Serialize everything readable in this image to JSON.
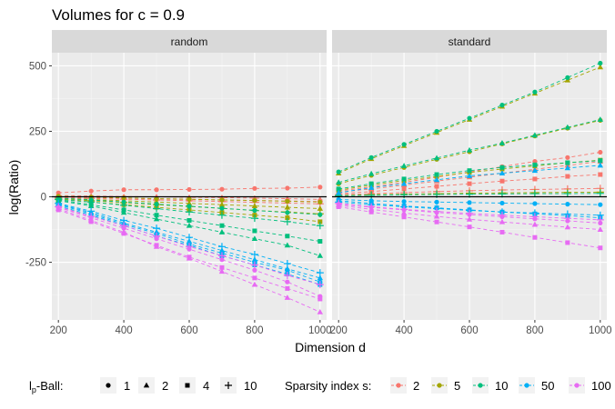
{
  "chart_data": {
    "type": "line",
    "title": "Volumes for c = 0.9",
    "xlabel": "Dimension d",
    "ylabel": "log(Ratio)",
    "x": [
      200,
      300,
      400,
      500,
      600,
      700,
      800,
      900,
      1000
    ],
    "xticks": [
      "200",
      "400",
      "600",
      "800",
      "1000"
    ],
    "yticks": [
      "-250",
      "0",
      "250",
      "500"
    ],
    "xlim": [
      180,
      1020
    ],
    "ylim": [
      -470,
      550
    ],
    "hline": 0,
    "facets": [
      "random",
      "standard"
    ],
    "legend": {
      "shape_title": "lp-Ball:",
      "shape_title_main": "l",
      "shape_title_sub": "p",
      "shape_title_rest": "-Ball:",
      "shapes": [
        {
          "label": "1",
          "shape": "circle"
        },
        {
          "label": "2",
          "shape": "triangle"
        },
        {
          "label": "4",
          "shape": "square"
        },
        {
          "label": "10",
          "shape": "plus"
        }
      ],
      "color_title": "Sparsity index s:",
      "colors": [
        {
          "label": "2",
          "color": "#F8766D"
        },
        {
          "label": "5",
          "color": "#A3A500"
        },
        {
          "label": "10",
          "color": "#00BF7D"
        },
        {
          "label": "50",
          "color": "#00B0F6"
        },
        {
          "label": "100",
          "color": "#E76BF3"
        }
      ]
    },
    "series": [
      {
        "facet": "random",
        "s": "2",
        "p": "1",
        "values": [
          15,
          22,
          27,
          27,
          28,
          29,
          32,
          33,
          37
        ]
      },
      {
        "facet": "random",
        "s": "2",
        "p": "2",
        "values": [
          5,
          3,
          1,
          0,
          -2,
          -3,
          -5,
          -7,
          -10
        ]
      },
      {
        "facet": "random",
        "s": "2",
        "p": "4",
        "values": [
          0,
          -3,
          -5,
          -8,
          -10,
          -12,
          -14,
          -16,
          -18
        ]
      },
      {
        "facet": "random",
        "s": "2",
        "p": "10",
        "values": [
          -3,
          -6,
          -9,
          -12,
          -15,
          -18,
          -21,
          -24,
          -27
        ]
      },
      {
        "facet": "random",
        "s": "5",
        "p": "1",
        "values": [
          2,
          -1,
          -4,
          -7,
          -9,
          -12,
          -14,
          -17,
          -20
        ]
      },
      {
        "facet": "random",
        "s": "5",
        "p": "2",
        "values": [
          -5,
          -10,
          -15,
          -20,
          -25,
          -30,
          -35,
          -40,
          -45
        ]
      },
      {
        "facet": "random",
        "s": "5",
        "p": "4",
        "values": [
          -10,
          -20,
          -30,
          -40,
          -50,
          -60,
          -70,
          -80,
          -95
        ]
      },
      {
        "facet": "random",
        "s": "5",
        "p": "10",
        "values": [
          -8,
          -15,
          -22,
          -30,
          -37,
          -44,
          -52,
          -58,
          -65
        ]
      },
      {
        "facet": "random",
        "s": "10",
        "p": "1",
        "values": [
          -5,
          -12,
          -20,
          -28,
          -36,
          -44,
          -52,
          -60,
          -68
        ]
      },
      {
        "facet": "random",
        "s": "10",
        "p": "2",
        "values": [
          -15,
          -35,
          -60,
          -85,
          -110,
          -135,
          -160,
          -185,
          -225
        ]
      },
      {
        "facet": "random",
        "s": "10",
        "p": "4",
        "values": [
          -12,
          -30,
          -50,
          -70,
          -90,
          -110,
          -130,
          -150,
          -170
        ]
      },
      {
        "facet": "random",
        "s": "10",
        "p": "10",
        "values": [
          -10,
          -20,
          -32,
          -45,
          -58,
          -70,
          -82,
          -95,
          -110
        ]
      },
      {
        "facet": "random",
        "s": "50",
        "p": "1",
        "values": [
          -30,
          -65,
          -105,
          -140,
          -180,
          -215,
          -250,
          -280,
          -325
        ]
      },
      {
        "facet": "random",
        "s": "50",
        "p": "2",
        "values": [
          -28,
          -60,
          -100,
          -135,
          -170,
          -205,
          -240,
          -275,
          -310
        ]
      },
      {
        "facet": "random",
        "s": "50",
        "p": "4",
        "values": [
          -35,
          -70,
          -110,
          -150,
          -185,
          -225,
          -260,
          -295,
          -335
        ]
      },
      {
        "facet": "random",
        "s": "50",
        "p": "10",
        "values": [
          -25,
          -55,
          -90,
          -120,
          -155,
          -190,
          -220,
          -255,
          -290
        ]
      },
      {
        "facet": "random",
        "s": "100",
        "p": "1",
        "values": [
          -40,
          -80,
          -120,
          -160,
          -200,
          -240,
          -280,
          -325,
          -380
        ]
      },
      {
        "facet": "random",
        "s": "100",
        "p": "2",
        "values": [
          -45,
          -90,
          -135,
          -190,
          -235,
          -285,
          -335,
          -385,
          -440
        ]
      },
      {
        "facet": "random",
        "s": "100",
        "p": "4",
        "values": [
          -50,
          -95,
          -140,
          -185,
          -230,
          -270,
          -310,
          -350,
          -390
        ]
      },
      {
        "facet": "random",
        "s": "100",
        "p": "10",
        "values": [
          -38,
          -75,
          -110,
          -150,
          -190,
          -225,
          -260,
          -300,
          -335
        ]
      },
      {
        "facet": "standard",
        "s": "2",
        "p": "1",
        "values": [
          22,
          38,
          55,
          75,
          95,
          115,
          135,
          150,
          170
        ]
      },
      {
        "facet": "standard",
        "s": "2",
        "p": "2",
        "values": [
          18,
          30,
          45,
          60,
          75,
          90,
          105,
          120,
          135
        ]
      },
      {
        "facet": "standard",
        "s": "2",
        "p": "4",
        "values": [
          12,
          20,
          30,
          40,
          50,
          60,
          68,
          78,
          85
        ]
      },
      {
        "facet": "standard",
        "s": "2",
        "p": "10",
        "values": [
          8,
          12,
          16,
          20,
          23,
          26,
          28,
          30,
          32
        ]
      },
      {
        "facet": "standard",
        "s": "5",
        "p": "1",
        "values": [
          50,
          82,
          112,
          143,
          172,
          202,
          232,
          262,
          292
        ]
      },
      {
        "facet": "standard",
        "s": "5",
        "p": "2",
        "values": [
          90,
          145,
          195,
          245,
          295,
          345,
          395,
          445,
          495
        ]
      },
      {
        "facet": "standard",
        "s": "5",
        "p": "4",
        "values": [
          25,
          45,
          62,
          78,
          93,
          106,
          118,
          130,
          140
        ]
      },
      {
        "facet": "standard",
        "s": "5",
        "p": "10",
        "values": [
          5,
          8,
          10,
          12,
          14,
          15,
          16,
          17,
          18
        ]
      },
      {
        "facet": "standard",
        "s": "10",
        "p": "1",
        "values": [
          95,
          150,
          200,
          250,
          300,
          350,
          400,
          455,
          510
        ]
      },
      {
        "facet": "standard",
        "s": "10",
        "p": "2",
        "values": [
          55,
          88,
          118,
          148,
          178,
          205,
          235,
          265,
          295
        ]
      },
      {
        "facet": "standard",
        "s": "10",
        "p": "4",
        "values": [
          30,
          50,
          68,
          85,
          100,
          112,
          122,
          130,
          138
        ]
      },
      {
        "facet": "standard",
        "s": "10",
        "p": "10",
        "values": [
          4,
          6,
          8,
          9,
          10,
          11,
          12,
          12,
          13
        ]
      },
      {
        "facet": "standard",
        "s": "50",
        "p": "1",
        "values": [
          -10,
          -15,
          -18,
          -20,
          -22,
          -24,
          -26,
          -28,
          -30
        ]
      },
      {
        "facet": "standard",
        "s": "50",
        "p": "2",
        "values": [
          15,
          35,
          50,
          65,
          80,
          90,
          100,
          110,
          120
        ]
      },
      {
        "facet": "standard",
        "s": "50",
        "p": "4",
        "values": [
          -15,
          -25,
          -35,
          -42,
          -50,
          -58,
          -65,
          -72,
          -80
        ]
      },
      {
        "facet": "standard",
        "s": "50",
        "p": "10",
        "values": [
          -20,
          -30,
          -38,
          -45,
          -52,
          -58,
          -62,
          -66,
          -70
        ]
      },
      {
        "facet": "standard",
        "s": "100",
        "p": "1",
        "values": [
          -28,
          -40,
          -50,
          -60,
          -68,
          -76,
          -84,
          -92,
          -100
        ]
      },
      {
        "facet": "standard",
        "s": "100",
        "p": "2",
        "values": [
          -32,
          -48,
          -62,
          -75,
          -86,
          -96,
          -106,
          -116,
          -125
        ]
      },
      {
        "facet": "standard",
        "s": "100",
        "p": "4",
        "values": [
          -38,
          -58,
          -77,
          -96,
          -115,
          -135,
          -155,
          -175,
          -195
        ]
      },
      {
        "facet": "standard",
        "s": "100",
        "p": "10",
        "values": [
          -25,
          -38,
          -48,
          -56,
          -63,
          -70,
          -76,
          -82,
          -88
        ]
      }
    ]
  }
}
